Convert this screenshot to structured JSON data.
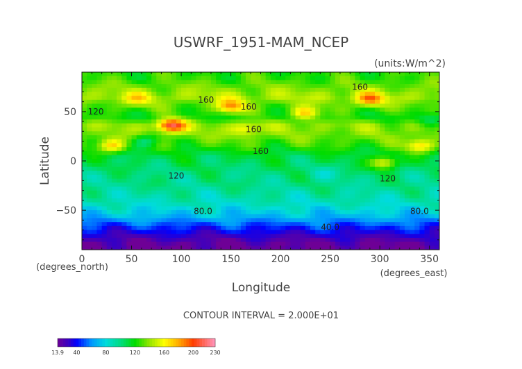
{
  "chart_data": {
    "type": "heatmap",
    "title": "USWRF_1951-MAM_NCEP",
    "units": "(units:W/m^2)",
    "xlabel": "Longitude",
    "ylabel": "Latitude",
    "x_unit_note": "(degrees_east)",
    "y_unit_note": "(degrees_north)",
    "xlim": [
      0,
      360
    ],
    "ylim": [
      -90,
      90
    ],
    "x_ticks": [
      0,
      50,
      100,
      150,
      200,
      250,
      300,
      350
    ],
    "y_ticks": [
      -50,
      0,
      50
    ],
    "contour_interval_text": "CONTOUR INTERVAL = 2.000E+01",
    "contour_labels": [
      {
        "text": "160",
        "lon": 280,
        "lat": 75
      },
      {
        "text": "160",
        "lon": 125,
        "lat": 62
      },
      {
        "text": "160",
        "lon": 168,
        "lat": 55
      },
      {
        "text": "160",
        "lon": 173,
        "lat": 32
      },
      {
        "text": "160",
        "lon": 180,
        "lat": 10
      },
      {
        "text": "120",
        "lon": 14,
        "lat": 50
      },
      {
        "text": "120",
        "lon": 95,
        "lat": -15
      },
      {
        "text": "120",
        "lon": 308,
        "lat": -18
      },
      {
        "text": "80.0",
        "lon": 122,
        "lat": -51
      },
      {
        "text": "80.0",
        "lon": 340,
        "lat": -51
      },
      {
        "text": "40.0",
        "lon": 250,
        "lat": -67
      }
    ],
    "colorbar": {
      "min": 13.9,
      "max": 230,
      "tick_labels": [
        "13.9",
        "40",
        "80",
        "120",
        "160",
        "200",
        "230"
      ],
      "tick_values": [
        13.9,
        40,
        80,
        120,
        160,
        200,
        230
      ]
    },
    "zonal_band_values": [
      {
        "lat": 85,
        "value": 125
      },
      {
        "lat": 75,
        "value": 135
      },
      {
        "lat": 65,
        "value": 145
      },
      {
        "lat": 55,
        "value": 130
      },
      {
        "lat": 45,
        "value": 120
      },
      {
        "lat": 35,
        "value": 140
      },
      {
        "lat": 25,
        "value": 135
      },
      {
        "lat": 15,
        "value": 125
      },
      {
        "lat": 5,
        "value": 110
      },
      {
        "lat": -5,
        "value": 105
      },
      {
        "lat": -15,
        "value": 100
      },
      {
        "lat": -25,
        "value": 98
      },
      {
        "lat": -35,
        "value": 92
      },
      {
        "lat": -45,
        "value": 85
      },
      {
        "lat": -55,
        "value": 72
      },
      {
        "lat": -65,
        "value": 50
      },
      {
        "lat": -75,
        "value": 30
      },
      {
        "lat": -85,
        "value": 15
      }
    ],
    "hotspots": [
      {
        "lon": 90,
        "lat": 36,
        "value": 215
      },
      {
        "lon": 150,
        "lat": 55,
        "value": 185
      },
      {
        "lon": 290,
        "lat": 62,
        "value": 190
      },
      {
        "lon": 165,
        "lat": 32,
        "value": 165
      },
      {
        "lon": 225,
        "lat": 48,
        "value": 170
      },
      {
        "lon": 30,
        "lat": 15,
        "value": 170
      },
      {
        "lon": 305,
        "lat": -2,
        "value": 160
      },
      {
        "lon": 55,
        "lat": 62,
        "value": 165
      },
      {
        "lon": 340,
        "lat": 15,
        "value": 170
      },
      {
        "lon": 65,
        "lat": 20,
        "value": 100
      },
      {
        "lon": 245,
        "lat": -12,
        "value": 90
      },
      {
        "lon": 25,
        "lat": -30,
        "value": 95
      },
      {
        "lon": 350,
        "lat": 40,
        "value": 105
      }
    ]
  }
}
